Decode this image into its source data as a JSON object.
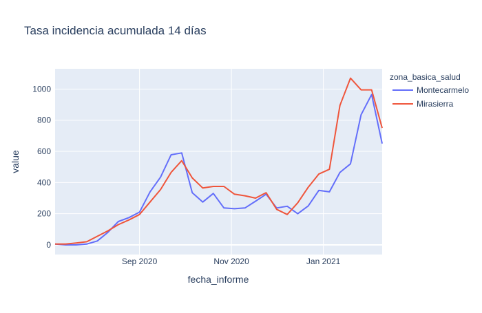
{
  "chart_data": {
    "type": "line",
    "title": "Tasa incidencia acumulada 14 días",
    "xlabel": "fecha_informe",
    "ylabel": "value",
    "legend_title": "zona_basica_salud",
    "legend_position": "top-right",
    "x_start": "2020-07-07",
    "x_step_days": 7,
    "xlim": [
      "2020-07-07",
      "2021-02-09"
    ],
    "ylim": [
      -62,
      1130
    ],
    "yticks": [
      0,
      200,
      400,
      600,
      800,
      1000
    ],
    "xticks": [
      {
        "date": "2020-09-01",
        "label": "Sep 2020"
      },
      {
        "date": "2020-11-01",
        "label": "Nov 2020"
      },
      {
        "date": "2021-01-01",
        "label": "Jan 2021"
      }
    ],
    "grid": true,
    "series": [
      {
        "name": "Montecarmelo",
        "color": "#636efa",
        "values": [
          5,
          0,
          0,
          5,
          25,
          80,
          150,
          175,
          210,
          340,
          435,
          578,
          590,
          335,
          275,
          330,
          237,
          232,
          237,
          280,
          325,
          237,
          248,
          200,
          250,
          350,
          340,
          465,
          520,
          835,
          965,
          650
        ]
      },
      {
        "name": "Mirasierra",
        "color": "#ef553b",
        "values": [
          5,
          5,
          12,
          20,
          55,
          90,
          130,
          160,
          195,
          275,
          355,
          465,
          540,
          430,
          365,
          375,
          375,
          325,
          315,
          300,
          335,
          228,
          195,
          270,
          370,
          455,
          485,
          895,
          1070,
          995,
          995,
          750
        ]
      }
    ]
  }
}
